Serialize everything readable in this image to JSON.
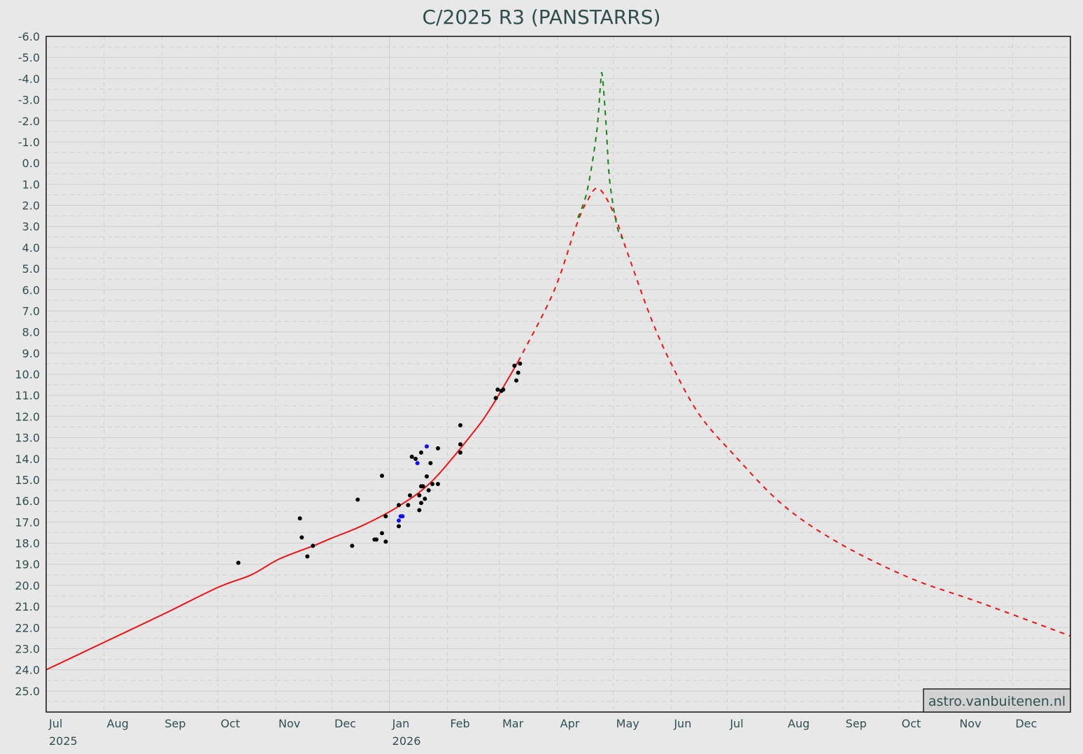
{
  "chart_data": {
    "type": "line",
    "title": "C/2025 R3 (PANSTARRS)",
    "xlabel": "",
    "ylabel": "",
    "xlim": [
      "2025-07-01",
      "2027-01-01"
    ],
    "ylim": [
      26,
      -6
    ],
    "y_inverted": true,
    "grid": true,
    "yticks": [
      "-6.0",
      "-5.0",
      "-4.0",
      "-3.0",
      "-2.0",
      "-1.0",
      "0.0",
      "1.0",
      "2.0",
      "3.0",
      "4.0",
      "5.0",
      "6.0",
      "7.0",
      "8.0",
      "9.0",
      "10.0",
      "11.0",
      "12.0",
      "13.0",
      "14.0",
      "15.0",
      "16.0",
      "17.0",
      "18.0",
      "19.0",
      "20.0",
      "21.0",
      "22.0",
      "23.0",
      "24.0",
      "25.0"
    ],
    "xticks": [
      {
        "date": "2025-07-01",
        "label": "Jul",
        "year": "2025"
      },
      {
        "date": "2025-08-01",
        "label": "Aug"
      },
      {
        "date": "2025-09-01",
        "label": "Sep"
      },
      {
        "date": "2025-10-01",
        "label": "Oct"
      },
      {
        "date": "2025-11-01",
        "label": "Nov"
      },
      {
        "date": "2025-12-01",
        "label": "Dec"
      },
      {
        "date": "2026-01-01",
        "label": "Jan",
        "year": "2026"
      },
      {
        "date": "2026-02-01",
        "label": "Feb"
      },
      {
        "date": "2026-03-01",
        "label": "Mar"
      },
      {
        "date": "2026-04-01",
        "label": "Apr"
      },
      {
        "date": "2026-05-01",
        "label": "May"
      },
      {
        "date": "2026-06-01",
        "label": "Jun"
      },
      {
        "date": "2026-07-01",
        "label": "Jul"
      },
      {
        "date": "2026-08-01",
        "label": "Aug"
      },
      {
        "date": "2026-09-01",
        "label": "Sep"
      },
      {
        "date": "2026-10-01",
        "label": "Oct"
      },
      {
        "date": "2026-11-01",
        "label": "Nov"
      },
      {
        "date": "2026-12-01",
        "label": "Dec"
      }
    ],
    "series": [
      {
        "name": "predicted-magnitude",
        "color": "#ee1111",
        "style": "solid",
        "points": [
          [
            "2025-07-01",
            24.0
          ],
          [
            "2025-08-01",
            22.7
          ],
          [
            "2025-09-01",
            21.4
          ],
          [
            "2025-10-01",
            20.1
          ],
          [
            "2025-10-19",
            19.5
          ],
          [
            "2025-11-03",
            18.75
          ],
          [
            "2025-11-22",
            18.1
          ],
          [
            "2025-11-30",
            17.8
          ],
          [
            "2025-12-18",
            17.15
          ],
          [
            "2026-01-06",
            16.25
          ],
          [
            "2026-01-24",
            15.05
          ],
          [
            "2026-02-15",
            12.75
          ],
          [
            "2026-02-25",
            11.5
          ],
          [
            "2026-03-11",
            9.4
          ]
        ]
      },
      {
        "name": "predicted-magnitude-future",
        "color": "#ee1111",
        "style": "dashed",
        "points": [
          [
            "2026-03-11",
            9.4
          ],
          [
            "2026-03-30",
            6.1
          ],
          [
            "2026-04-11",
            3.0
          ],
          [
            "2026-04-17",
            1.8
          ],
          [
            "2026-04-23",
            1.2
          ],
          [
            "2026-05-01",
            2.33
          ],
          [
            "2026-05-08",
            4.1
          ],
          [
            "2026-05-21",
            7.3
          ],
          [
            "2026-06-01",
            9.5
          ],
          [
            "2026-06-16",
            11.9
          ],
          [
            "2026-07-05",
            13.85
          ],
          [
            "2026-07-31",
            16.2
          ],
          [
            "2026-08-30",
            18.0
          ],
          [
            "2026-10-07",
            19.65
          ],
          [
            "2026-11-13",
            20.8
          ],
          [
            "2027-01-01",
            22.4
          ]
        ]
      },
      {
        "name": "forward-scattering-magnitude",
        "color": "#118811",
        "style": "dashed",
        "points": [
          [
            "2026-04-12",
            2.6
          ],
          [
            "2026-04-17",
            1.3
          ],
          [
            "2026-04-22",
            -1.4
          ],
          [
            "2026-04-24",
            -3.6
          ],
          [
            "2026-04-25",
            -4.2
          ],
          [
            "2026-04-27",
            -2.0
          ],
          [
            "2026-04-29",
            0.8
          ],
          [
            "2026-05-03",
            3.0
          ],
          [
            "2026-05-06",
            3.6
          ]
        ]
      }
    ],
    "observations": [
      {
        "color": "#000000",
        "points": [
          [
            "2025-10-12",
            18.93
          ],
          [
            "2025-11-14",
            16.83
          ],
          [
            "2025-11-15",
            17.73
          ],
          [
            "2025-11-18",
            18.63
          ],
          [
            "2025-11-21",
            18.13
          ],
          [
            "2025-12-12",
            18.13
          ],
          [
            "2025-12-15",
            15.94
          ],
          [
            "2025-12-24",
            17.83
          ],
          [
            "2025-12-25",
            17.83
          ],
          [
            "2025-12-28",
            17.53
          ],
          [
            "2025-12-28",
            14.81
          ],
          [
            "2025-12-30",
            16.73
          ],
          [
            "2025-12-30",
            17.93
          ],
          [
            "2026-01-06",
            16.2
          ],
          [
            "2026-01-06",
            17.2
          ],
          [
            "2026-01-11",
            16.2
          ],
          [
            "2026-01-12",
            15.74
          ],
          [
            "2026-01-13",
            13.91
          ],
          [
            "2026-01-15",
            14.01
          ],
          [
            "2026-01-17",
            15.74
          ],
          [
            "2026-01-17",
            16.44
          ],
          [
            "2026-01-18",
            13.71
          ],
          [
            "2026-01-18",
            16.1
          ],
          [
            "2026-01-18",
            15.31
          ],
          [
            "2026-01-19",
            15.31
          ],
          [
            "2026-01-20",
            15.9
          ],
          [
            "2026-01-21",
            14.84
          ],
          [
            "2026-01-22",
            15.5
          ],
          [
            "2026-01-23",
            14.21
          ],
          [
            "2026-01-24",
            15.2
          ],
          [
            "2026-01-27",
            15.2
          ],
          [
            "2026-01-27",
            13.51
          ],
          [
            "2026-02-08",
            12.42
          ],
          [
            "2026-02-08",
            13.32
          ],
          [
            "2026-02-08",
            13.71
          ],
          [
            "2026-02-27",
            11.13
          ],
          [
            "2026-02-28",
            10.73
          ],
          [
            "2026-03-02",
            10.79
          ],
          [
            "2026-03-03",
            10.73
          ],
          [
            "2026-03-09",
            9.6
          ],
          [
            "2026-03-10",
            10.3
          ],
          [
            "2026-03-11",
            9.93
          ],
          [
            "2026-03-12",
            9.5
          ]
        ]
      },
      {
        "color": "#1111ee",
        "points": [
          [
            "2026-01-06",
            16.93
          ],
          [
            "2026-01-07",
            16.73
          ],
          [
            "2026-01-08",
            16.73
          ],
          [
            "2026-01-16",
            14.21
          ],
          [
            "2026-01-21",
            13.42
          ]
        ]
      }
    ],
    "watermark": "astro.vanbuitenen.nl"
  }
}
